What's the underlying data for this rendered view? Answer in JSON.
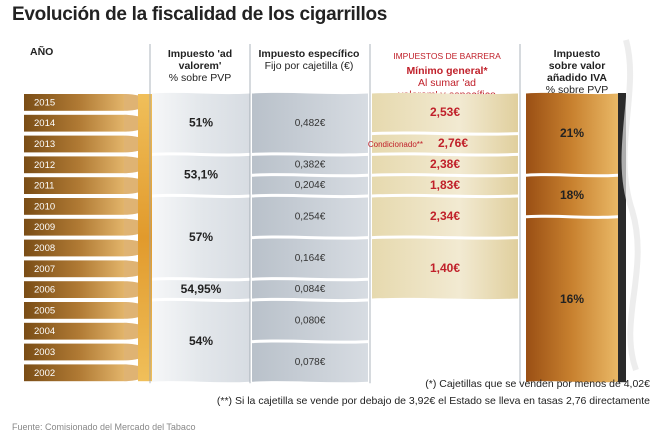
{
  "title": "Evolución de la fiscalidad de los cigarrillos",
  "headers": {
    "year": "AÑO",
    "advalorem_title": "Impuesto 'ad valorem'",
    "advalorem_sub": "% sobre PVP",
    "specific_title": "Impuesto específico",
    "specific_sub": "Fijo por cajetilla (€)",
    "barrier_small": "IMPUESTOS DE BARRERA",
    "barrier_title": "Mínimo general*",
    "barrier_sub": "Al sumar 'ad valorem' y específico",
    "iva_title": "Impuesto sobre valor añadido IVA",
    "iva_sub": "% sobre PVP"
  },
  "chart_data": {
    "type": "table",
    "years": [
      "2015",
      "2014",
      "2013",
      "2012",
      "2011",
      "2010",
      "2009",
      "2008",
      "2007",
      "2006",
      "2005",
      "2004",
      "2003",
      "2002"
    ],
    "ad_valorem": [
      {
        "label": "51%",
        "from": "2015",
        "to": "2013"
      },
      {
        "label": "53,1%",
        "from": "2012",
        "to": "2011"
      },
      {
        "label": "57%",
        "from": "2010",
        "to": "2007"
      },
      {
        "label": "54,95%",
        "from": "2006",
        "to": "2006"
      },
      {
        "label": "54%",
        "from": "2005",
        "to": "2002"
      }
    ],
    "specific": [
      {
        "label": "0,482€",
        "from": "2015",
        "to": "2013"
      },
      {
        "label": "0,382€",
        "from": "2012",
        "to": "2012"
      },
      {
        "label": "0,204€",
        "from": "2011",
        "to": "2011"
      },
      {
        "label": "0,254€",
        "from": "2010",
        "to": "2009"
      },
      {
        "label": "0,164€",
        "from": "2008",
        "to": "2007"
      },
      {
        "label": "0,084€",
        "from": "2006",
        "to": "2006"
      },
      {
        "label": "0,080€",
        "from": "2005",
        "to": "2004"
      },
      {
        "label": "0,078€",
        "from": "2003",
        "to": "2002"
      }
    ],
    "barrier": [
      {
        "label": "2,53€",
        "from": "2015",
        "to": "2014"
      },
      {
        "label": "2,76€",
        "prefix": "Condicionado**",
        "from": "2013",
        "to": "2013"
      },
      {
        "label": "2,38€",
        "from": "2012",
        "to": "2012"
      },
      {
        "label": "1,83€",
        "from": "2011",
        "to": "2011"
      },
      {
        "label": "2,34€",
        "from": "2010",
        "to": "2009"
      },
      {
        "label": "1,40€",
        "from": "2008",
        "to": "2006"
      }
    ],
    "iva": [
      {
        "label": "21%",
        "from": "2015",
        "to": "2012"
      },
      {
        "label": "18%",
        "from": "2011",
        "to": "2010"
      },
      {
        "label": "16%",
        "from": "2009",
        "to": "2002"
      }
    ]
  },
  "notes": {
    "n1": "(*) Cajetillas que se venden por menos de 4,02€",
    "n2": "(**) Si la cajetilla se vende por debajo de 3,92€ el Estado se lleva en tasas 2,76 directamente"
  },
  "source": "Fuente: Comisionado del Mercado del Tabaco",
  "colors": {
    "tobacco_dark": "#8a5a1c",
    "tobacco_light": "#d9a65a",
    "filter": "#e7a93b",
    "advalorem_band": "#e7eaee",
    "specific_band": "#c5ccd4",
    "barrier_band": "#ece3c4",
    "iva_band": "#b4671f",
    "red": "#c0202a"
  }
}
